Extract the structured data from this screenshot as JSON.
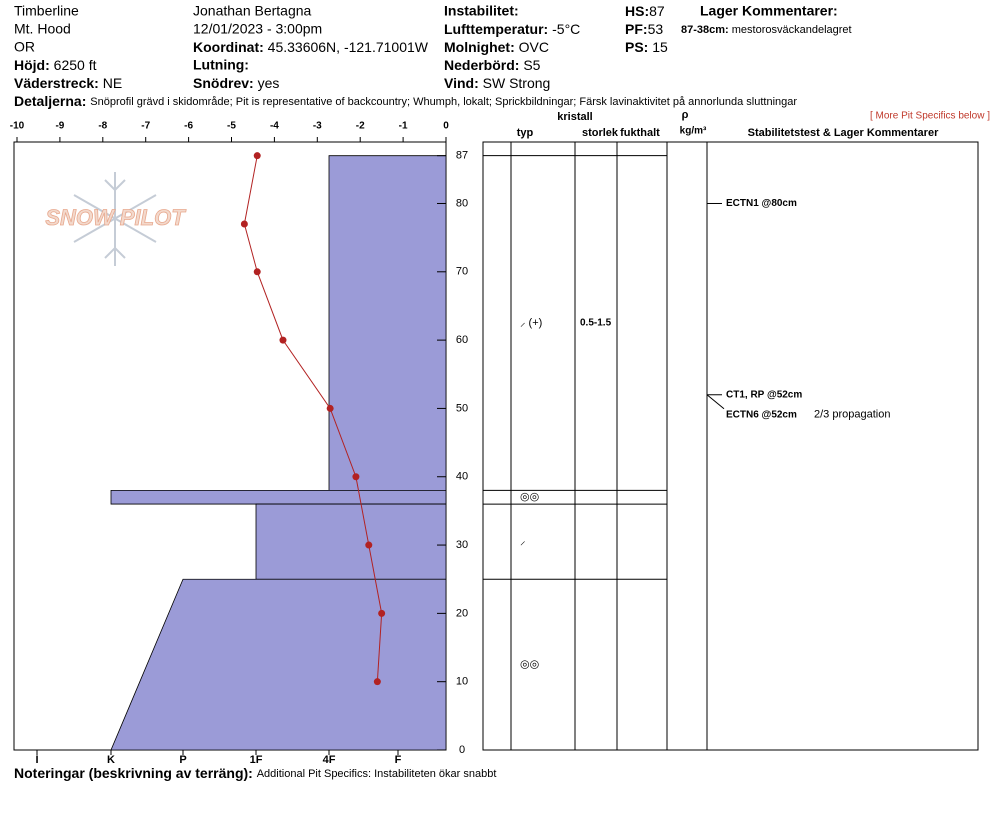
{
  "header": {
    "location": [
      "Timberline",
      "Mt. Hood",
      "OR"
    ],
    "elevation": {
      "label": "Höjd:",
      "value": "6250 ft"
    },
    "aspect": {
      "label": "Väderstreck:",
      "value": "NE"
    },
    "observer": "Jonathan Bertagna",
    "datetime": "12/01/2023 - 3:00pm",
    "coordinates": {
      "label": "Koordinat:",
      "value": "45.33606N, -121.71001W"
    },
    "slope": {
      "label": "Lutning:"
    },
    "wind_loading": {
      "label": "Snödrev:",
      "value": "yes"
    },
    "instability": {
      "label": "Instabilitet:"
    },
    "air_temp": {
      "label": "Lufttemperatur:",
      "value": "-5°C"
    },
    "sky": {
      "label": "Molnighet:",
      "value": "OVC"
    },
    "precip": {
      "label": "Nederbörd:",
      "value": "S5"
    },
    "wind": {
      "label": "Vind:",
      "value": "SW Strong"
    },
    "hs": {
      "label": "HS:",
      "value": "87"
    },
    "pf": {
      "label": "PF:",
      "value": "53"
    },
    "ps": {
      "label": "PS:",
      "value": "15"
    },
    "layer_comments": {
      "title": "Lager Kommentarer:",
      "items": [
        {
          "label": "87-38cm:",
          "text": "mestorosväckandelagret"
        }
      ]
    },
    "details": {
      "label": "Detaljerna:",
      "text": "Snöprofil grävd i skidområde;  Pit is representative of backcountry;  Whumph, lokalt;  Sprickbildningar;  Färsk lavinaktivitet på annorlunda sluttningar"
    },
    "more_link": "[ More Pit Specifics below ]",
    "logo": "SNOW PILOT"
  },
  "chart_data": {
    "type": "snowpit",
    "xlim": [
      -10,
      0
    ],
    "xticks": [
      -10,
      -9,
      -8,
      -7,
      -6,
      -5,
      -4,
      -3,
      -2,
      -1,
      0
    ],
    "ylim": [
      0,
      89
    ],
    "yticks": [
      0,
      10,
      20,
      30,
      40,
      50,
      60,
      70,
      80,
      87
    ],
    "hardness_scale": [
      "I",
      "K",
      "P",
      "1F",
      "4F",
      "F"
    ],
    "hardness_color": "#9b9bd7",
    "temperature": {
      "color": "#b22222",
      "depths": [
        87,
        77,
        70,
        60,
        50,
        40,
        30,
        20,
        10
      ],
      "values": [
        -4.4,
        -4.7,
        -4.4,
        -3.8,
        -2.7,
        -2.1,
        -1.8,
        -1.5,
        -1.6
      ]
    },
    "layers": [
      {
        "top": 87,
        "bottom": 38,
        "hardness_top": "4F",
        "hardness_bottom": "4F",
        "grain": "⸝ (+)",
        "size": "0.5-1.5"
      },
      {
        "top": 38,
        "bottom": 36,
        "hardness_top": "K",
        "hardness_bottom": "K",
        "grain": "◎◎"
      },
      {
        "top": 36,
        "bottom": 25,
        "hardness_top": "1F",
        "hardness_bottom": "1F",
        "grain": "⸝"
      },
      {
        "top": 25,
        "bottom": 0,
        "hardness_top": "P",
        "hardness_bottom": "K",
        "grain": "◎◎"
      }
    ],
    "columns": {
      "type": "typ",
      "crystal": "kristall",
      "size": "storlek",
      "moisture": "fukthalt",
      "density": "ρ",
      "density_unit": "kg/m³",
      "comments": "Stabilitetstest & Lager Kommentarer"
    },
    "tests": [
      {
        "depth": 80,
        "text": "ECTN1 @80cm"
      },
      {
        "depth": 52,
        "text": "CT1, RP @52cm"
      },
      {
        "depth": 52,
        "text": "ECTN6 @52cm",
        "note": "2/3 propagation"
      }
    ]
  },
  "notes": {
    "label": "Noteringar (beskrivning av terräng):",
    "text": "Additional Pit Specifics: Instabiliteten ökar snabbt"
  }
}
